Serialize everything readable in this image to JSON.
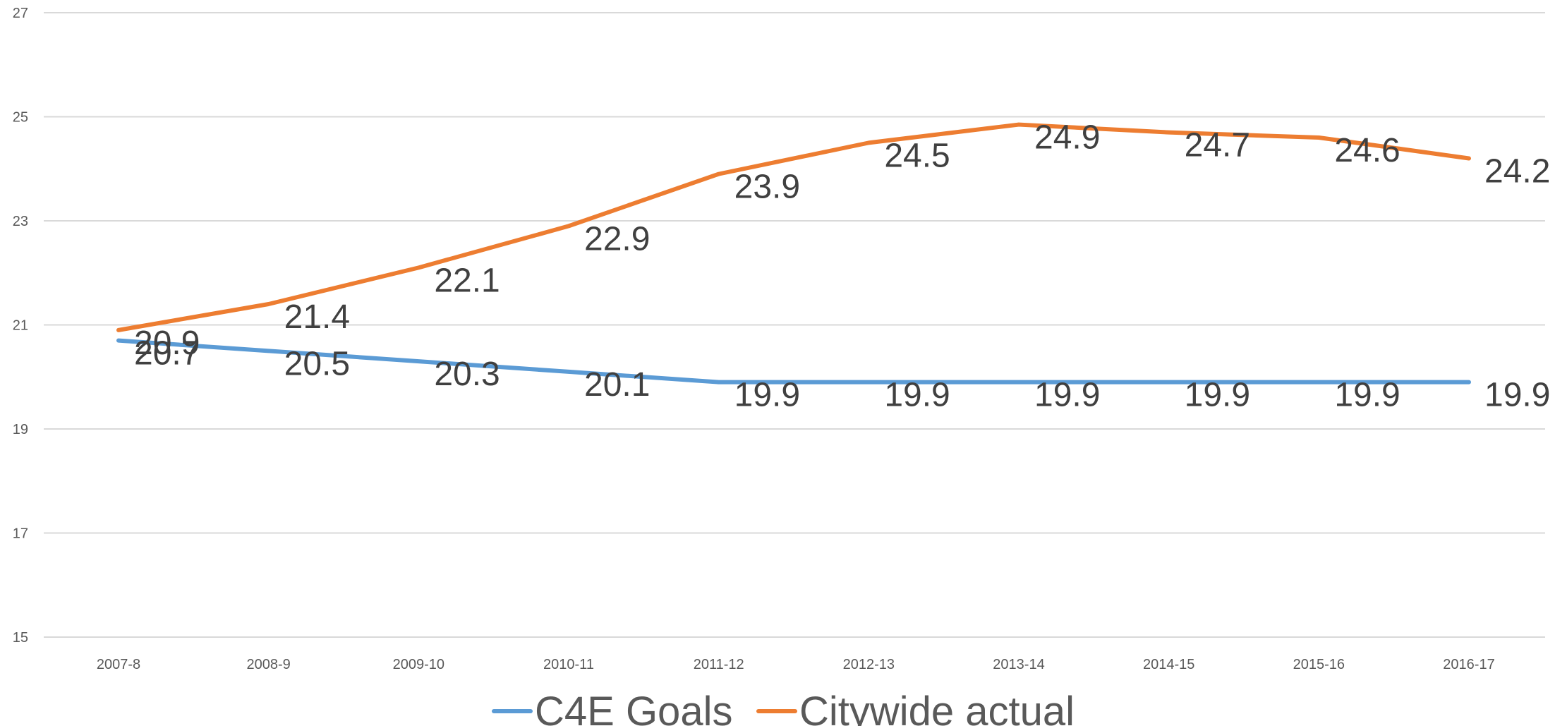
{
  "chart_data": {
    "type": "line",
    "categories": [
      "2007-8",
      "2008-9",
      "2009-10",
      "2010-11",
      "2011-12",
      "2012-13",
      "2013-14",
      "2014-15",
      "2015-16",
      "2016-17"
    ],
    "series": [
      {
        "name": "C4E Goals",
        "color": "#5b9bd5",
        "values": [
          20.7,
          20.5,
          20.3,
          20.1,
          19.9,
          19.9,
          19.9,
          19.9,
          19.9,
          19.9
        ],
        "labels": [
          "20.7",
          "20.5",
          "20.3",
          "20.1",
          "19.9",
          "19.9",
          "19.9",
          "19.9",
          "19.9",
          "19.9"
        ]
      },
      {
        "name": "Citywide actual",
        "color": "#ed7d31",
        "values": [
          20.9,
          21.4,
          22.1,
          22.9,
          23.9,
          24.5,
          24.85,
          24.7,
          24.6,
          24.2
        ],
        "labels": [
          "20.9",
          "21.4",
          "22.1",
          "22.9",
          "23.9",
          "24.5",
          "24.9",
          "24.7",
          "24.6",
          "24.2"
        ]
      }
    ],
    "ylim": [
      15,
      27
    ],
    "yticks": [
      "15",
      "17",
      "19",
      "21",
      "23",
      "25",
      "27"
    ],
    "title": "",
    "xlabel": "",
    "ylabel": "",
    "grid": true,
    "legend": "bottom"
  }
}
